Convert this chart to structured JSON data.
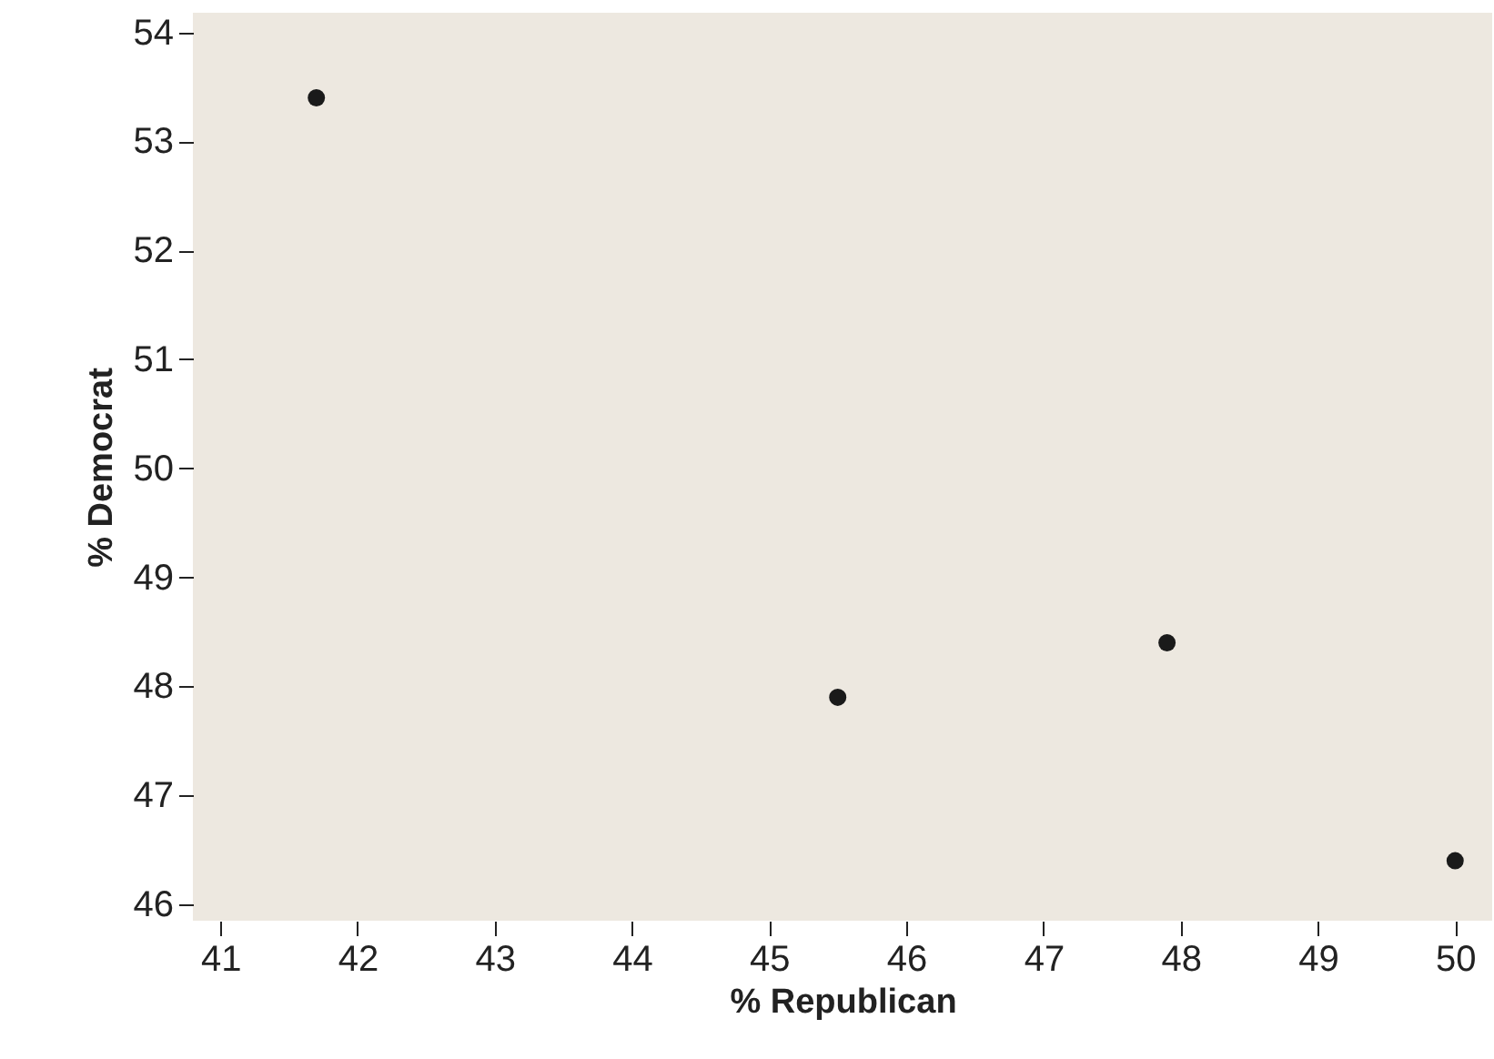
{
  "chart_data": {
    "type": "scatter",
    "xlabel": "% Republican",
    "ylabel": "% Democrat",
    "x": [
      41.7,
      45.5,
      47.9,
      50.0
    ],
    "series": [
      {
        "color": "#1a1a1a",
        "values": [
          53.4,
          47.9,
          48.4,
          46.4
        ]
      }
    ],
    "xlim": [
      40.8,
      50.27
    ],
    "xticks": [
      41,
      42,
      43,
      44,
      45,
      46,
      47,
      48,
      49,
      50
    ],
    "ylim": [
      45.85,
      54.18
    ],
    "yticks": [
      46,
      47,
      48,
      49,
      50,
      51,
      52,
      53,
      54
    ],
    "grid": false,
    "marker": "circle"
  }
}
